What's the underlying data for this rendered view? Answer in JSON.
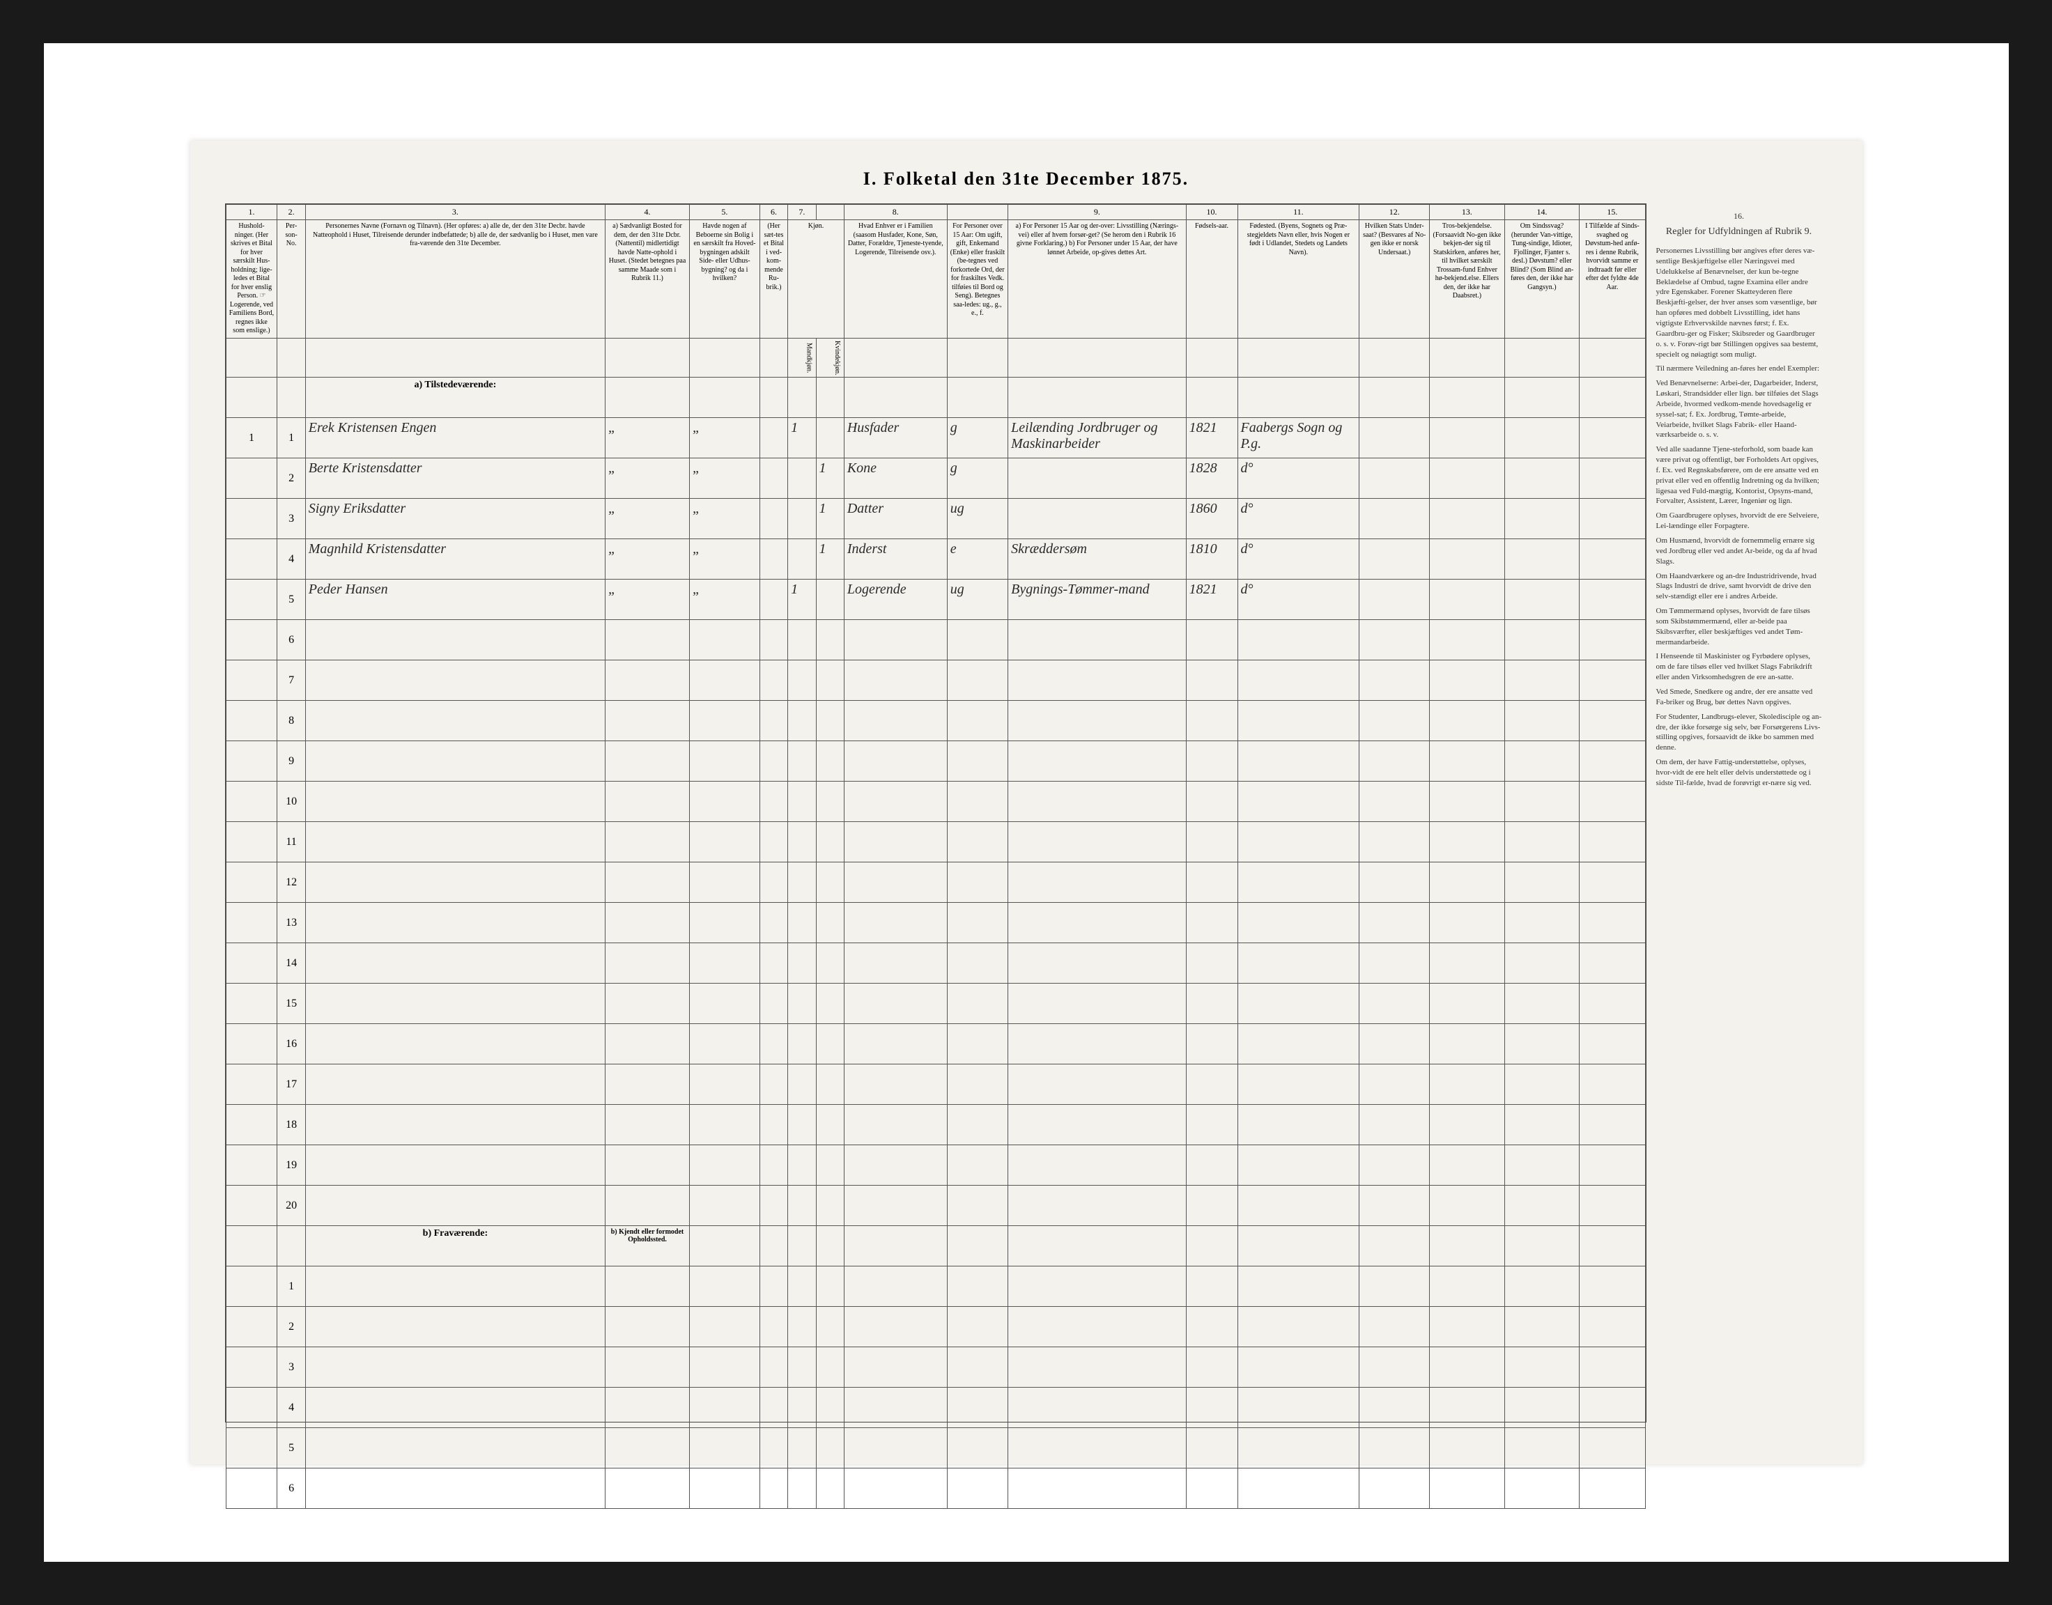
{
  "title": "I. Folketal den 31te December 1875.",
  "colors": {
    "page_bg": "#f4f2ed",
    "frame_bg": "#ffffff",
    "outer_bg": "#1a1a1a",
    "rule": "#555555",
    "ink": "#2a2a2a"
  },
  "column_numbers": [
    "1.",
    "2.",
    "3.",
    "4.",
    "5.",
    "6.",
    "7.",
    "",
    "8.",
    "",
    "9.",
    "10.",
    "11.",
    "12.",
    "13.",
    "14.",
    "15."
  ],
  "headers": {
    "c1": "Hushold-\nninger.\n(Her skrives et Bital for hver særskilt Hus-holdning; lige-ledes et Bital for hver enslig Person.\n☞ Logerende, ved Familiens Bord, regnes ikke som enslige.)",
    "c2": "Per-son-No.",
    "c3": "Personernes Navne (Fornavn og Tilnavn).\n(Her opføres:\na) alle de, der den 31te Decbr. havde Natteophold i Huset, Tilreisende derunder indbefattede;\nb) alle de, der sædvanlig bo i Huset, men vare fra-værende den 31te December.",
    "c4": "a) Sædvanligt Bosted for dem, der den 31te Dcbr. (Nattentil) midlertidigt havde Natte-ophold i Huset.\n(Stedet betegnes paa samme Maade som i Rubrik 11.)",
    "c5": "Havde nogen af Beboerne sin Bolig i en særskilt fra Hoved-bygningen adskilt Side- eller Udhus-bygning? og da i hvilken?",
    "c6": "(Her sæt-tes et Bital i ved-kom-mende Ru-brik.)",
    "c7": "Kjøn.",
    "c7a": "Mandkjøn.",
    "c7b": "Kvindekjøn.",
    "c8": "Hvad Enhver er i Familien\n(saasom Husfader, Kone, Søn, Datter, Forældre, Tjeneste-tyende, Logerende, Tilreisende osv.).",
    "c9top": "For Personer over 15 Aar: Om ugift, gift, Enkemand (Enke) eller fraskilt (be-tegnes ved forkortede Ord, der for fraskiltes Vedk. tilføies til Bord og Seng). Betegnes saa-ledes: ug., g., e., f.",
    "c9": "a) For Personer 15 Aar og der-over: Livsstilling (Nærings-vei) eller af hvem forsør-get? (Se herom den i Rubrik 16 givne Forklaring.)\nb) For Personer under 15 Aar, der have lønnet Arbeide, op-gives dettes Art.",
    "c10": "Fødsels-aar.",
    "c11": "Fødested.\n(Byens, Sognets og Præ-stegjeldets Navn eller, hvis Nogen er født i Udlandet, Stedets og Landets Navn).",
    "c12": "Hvilken Stats Under-saat?\n(Besvares af No-gen ikke er norsk Undersaat.)",
    "c13": "Tros-bekjendelse.\n(Forsaavidt No-gen ikke bekjen-der sig til Statskirken, anføres her, til hvilket særskilt Trossam-fund Enhver hø-bekjend.else. Ellers den, der ikke har Daabsret.)",
    "c14": "Om Sindssvag? (herunder Van-vittige, Tung-sindige, Idioter, Fjollinger, Fjanter s. desl.) Døvstum? eller Blind? (Som Blind an-føres den, der ikke har Gangsyn.)",
    "c15": "I Tilfælde af Sinds-svaghed og Døvstum-hed anfø-res i denne Rubrik, hvorvidt samme er indtraadt før eller efter det fyldte 4de Aar."
  },
  "section_a": "a) Tilstedeværende:",
  "section_b": "b) Fraværende:",
  "section_b_note": "b) Kjendt eller formodet Opholdssted.",
  "rows_a": [
    {
      "hh": "1",
      "no": "1",
      "name": "Erek Kristensen Engen",
      "c4": "„",
      "c5": "„",
      "c6": "",
      "m": "1",
      "k": "",
      "c8": "Husfader",
      "c9a": "g",
      "c9b": "Leilænding Jordbruger og Maskinarbeider",
      "c10": "1821",
      "c11": "Faabergs Sogn og P.g.",
      "c12": "",
      "c13": "",
      "c14": "",
      "c15": ""
    },
    {
      "hh": "",
      "no": "2",
      "name": "Berte Kristensdatter",
      "c4": "„",
      "c5": "„",
      "c6": "",
      "m": "",
      "k": "1",
      "c8": "Kone",
      "c9a": "g",
      "c9b": "",
      "c10": "1828",
      "c11": "d°",
      "c12": "",
      "c13": "",
      "c14": "",
      "c15": ""
    },
    {
      "hh": "",
      "no": "3",
      "name": "Signy Eriksdatter",
      "c4": "„",
      "c5": "„",
      "c6": "",
      "m": "",
      "k": "1",
      "c8": "Datter",
      "c9a": "ug",
      "c9b": "",
      "c10": "1860",
      "c11": "d°",
      "c12": "",
      "c13": "",
      "c14": "",
      "c15": ""
    },
    {
      "hh": "",
      "no": "4",
      "name": "Magnhild Kristensdatter",
      "c4": "„",
      "c5": "„",
      "c6": "",
      "m": "",
      "k": "1",
      "c8": "Inderst",
      "c9a": "e",
      "c9b": "Skræddersøm",
      "c10": "1810",
      "c11": "d°",
      "c12": "",
      "c13": "",
      "c14": "",
      "c15": ""
    },
    {
      "hh": "",
      "no": "5",
      "name": "Peder Hansen",
      "c4": "„",
      "c5": "„",
      "c6": "",
      "m": "1",
      "k": "",
      "c8": "Logerende",
      "c9a": "ug",
      "c9b": "Bygnings-Tømmer-mand",
      "c10": "1821",
      "c11": "d°",
      "c12": "",
      "c13": "",
      "c14": "",
      "c15": ""
    }
  ],
  "blank_rows_a": [
    6,
    7,
    8,
    9,
    10,
    11,
    12,
    13,
    14,
    15,
    16,
    17,
    18,
    19,
    20
  ],
  "blank_rows_b": [
    1,
    2,
    3,
    4,
    5,
    6
  ],
  "instructions_title": "Regler for Udfyldningen\naf\nRubrik 9.",
  "instructions_paras": [
    "Personernes Livsstilling bør angives efter deres væ-sentlige Beskjæftigelse eller Næringsvei med Udelukkelse af Benævnelser, der kun be-tegne Beklædelse af Ombud, tagne Examina eller andre ydre Egenskaber. Forener Skatteyderen flere Beskjæfti-gelser, der hver anses som væsentlige, bør han opføres med dobbelt Livsstilling, idet hans vigtigste Erhvervskilde nævnes først; f. Ex. Gaardbru-ger og Fisker; Skibsreder og Gaardbruger o. s. v. Forøv-rigt bør Stillingen opgives saa bestemt, specielt og nøiagtigt som muligt.",
    "Til nærmere Veiledning an-føres her endel Exempler:",
    "Ved Benævnelserne: Arbei-der, Dagarbeider, Inderst, Løskari, Strandsidder eller lign. bør tilføies det Slags Arbeide, hvormed vedkom-mende hovedsagelig er syssel-sat; f. Ex. Jordbrug, Tømte-arbeide, Veiarbeide, hvilket Slags Fabrik- eller Haand-værksarbeide o. s. v.",
    "Ved alle saadanne Tjene-steforhold, som baade kan være privat og offentligt, bør Forholdets Art opgives, f. Ex. ved Regnskabsførere, om de ere ansatte ved en privat eller ved en offentlig Indretning og da hvilken; ligesaa ved Fuld-mægtig, Kontorist, Opsyns-mand, Forvalter, Assistent, Lærer, Ingeniør og lign.",
    "Om Gaardbrugere oplyses, hvorvidt de ere Selveiere, Lei-lændinge eller Forpagtere.",
    "Om Husmænd, hvorvidt de fornemmelig ernære sig ved Jordbrug eller ved andet Ar-beide, og da af hvad Slags.",
    "Om Haandværkere og an-dre Industridrivende, hvad Slags Industri de drive, samt hvorvidt de drive den selv-stændigt eller ere i andres Arbeide.",
    "Om Tømmermænd oplyses, hvorvidt de fare tilsøs som Skibstømmermænd, eller ar-beide paa Skibsværfter, eller beskjæftiges ved andet Tøm-mermandarbeide.",
    "I Henseende til Maskinister og Fyrbødere oplyses, om de fare tilsøs eller ved hvilket Slags Fabrikdrift eller anden Virksomhedsgren de ere an-satte.",
    "Ved Smede, Snedkere og andre, der ere ansatte ved Fa-briker og Brug, bør dettes Navn opgives.",
    "For Studenter, Landbrugs-elever, Skoledisciple og an-dre, der ikke forsørge sig selv, bør Forsørgerens Livs-stilling opgives, forsaavidt de ikke bo sammen med denne.",
    "Om dem, der have Fattig-understøttelse, oplyses, hvor-vidt de ere helt eller delvis understøttede og i sidste Til-fælde, hvad de forøvrigt er-nære sig ved."
  ]
}
